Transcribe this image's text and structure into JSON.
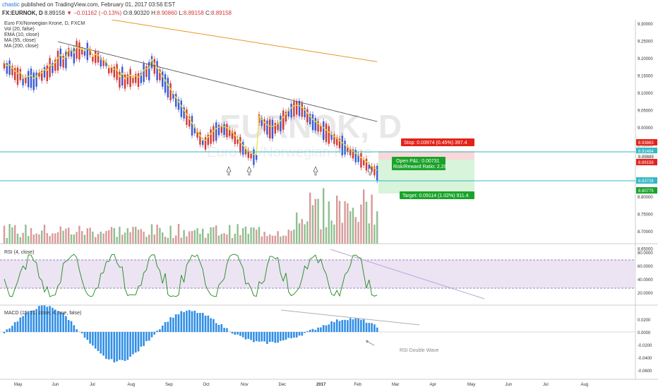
{
  "header": {
    "author": "chastic",
    "published": "published on TradingView.com, February 01, 2017 03:56 EST",
    "symbol": "FX:EURNOK, D",
    "last": "8.89158",
    "change": "▼ −0.01162 (−0.13%)",
    "o_label": "O:",
    "o_val": "8.90320",
    "h_label": "H:",
    "h_val": "8.90860",
    "l_label": "L:",
    "l_val": "8.89158",
    "c_label": "C:",
    "c_val": "8.89158"
  },
  "legend": {
    "title": "Euro FX/Norwegian Krone, D, FXCM",
    "vol": "Vol (20, false)",
    "ema": "EMA (10, close)",
    "ma55": "MA (55, close)",
    "ma200": "MA (200, close)"
  },
  "watermark": "EURNOK, D",
  "watermark_sub": "Euro FX/Norwegian Krone",
  "price_axis": [
    "9.30000",
    "9.25000",
    "9.20000",
    "9.15000",
    "9.10000",
    "9.05000",
    "9.00000",
    "8.95000",
    "8.90000",
    "8.85000",
    "8.80000",
    "8.75000",
    "8.70000",
    "8.65000"
  ],
  "price_labels": {
    "stop_price": "8.93863",
    "line_upper": "8.91484",
    "entry": "8.89889",
    "last": "8.89158",
    "line_lower": "8.83728",
    "target_price": "8.80775"
  },
  "trade": {
    "stop": "Stop: 0.03974 (0.45%) 397.4",
    "pnl": "Open P&L: 0.00731",
    "rr": "Risk/Reward Ratio: 2.29",
    "target": "Target: 0.09114 (1.02%) 911.4"
  },
  "rsi": {
    "label": "RSI (4, close)",
    "axis": [
      "80.0000",
      "60.0000",
      "40.0000",
      "20.0000"
    ]
  },
  "macd": {
    "label": "MACD (15, 21, close, 4, true, false)",
    "axis": [
      "0.0200",
      "0.0000",
      "-0.0200",
      "-0.0400",
      "-0.0600"
    ],
    "annotation": "RSI Double Wave"
  },
  "time_axis": [
    "May",
    "Jun",
    "Jul",
    "Aug",
    "Sep",
    "Oct",
    "Nov",
    "Dec",
    "2017",
    "Feb",
    "Mar",
    "Apr",
    "May",
    "Jun",
    "Jul",
    "Aug"
  ],
  "colors": {
    "up": "#3b5bd6",
    "down": "#d23a3a",
    "ema": "#e8e03a",
    "ma55": "#4a4a4a",
    "ma200": "#e89a2a",
    "rsi": "#1e8a1e",
    "macd": "#2f8ee6",
    "cyan": "#33b8c4",
    "stop": "#e2231a",
    "target": "#1aa32b"
  },
  "icons": [
    "arrow-up-icon",
    "arrow-up-icon",
    "arrow-up-icon",
    "arrow-up-icon"
  ]
}
